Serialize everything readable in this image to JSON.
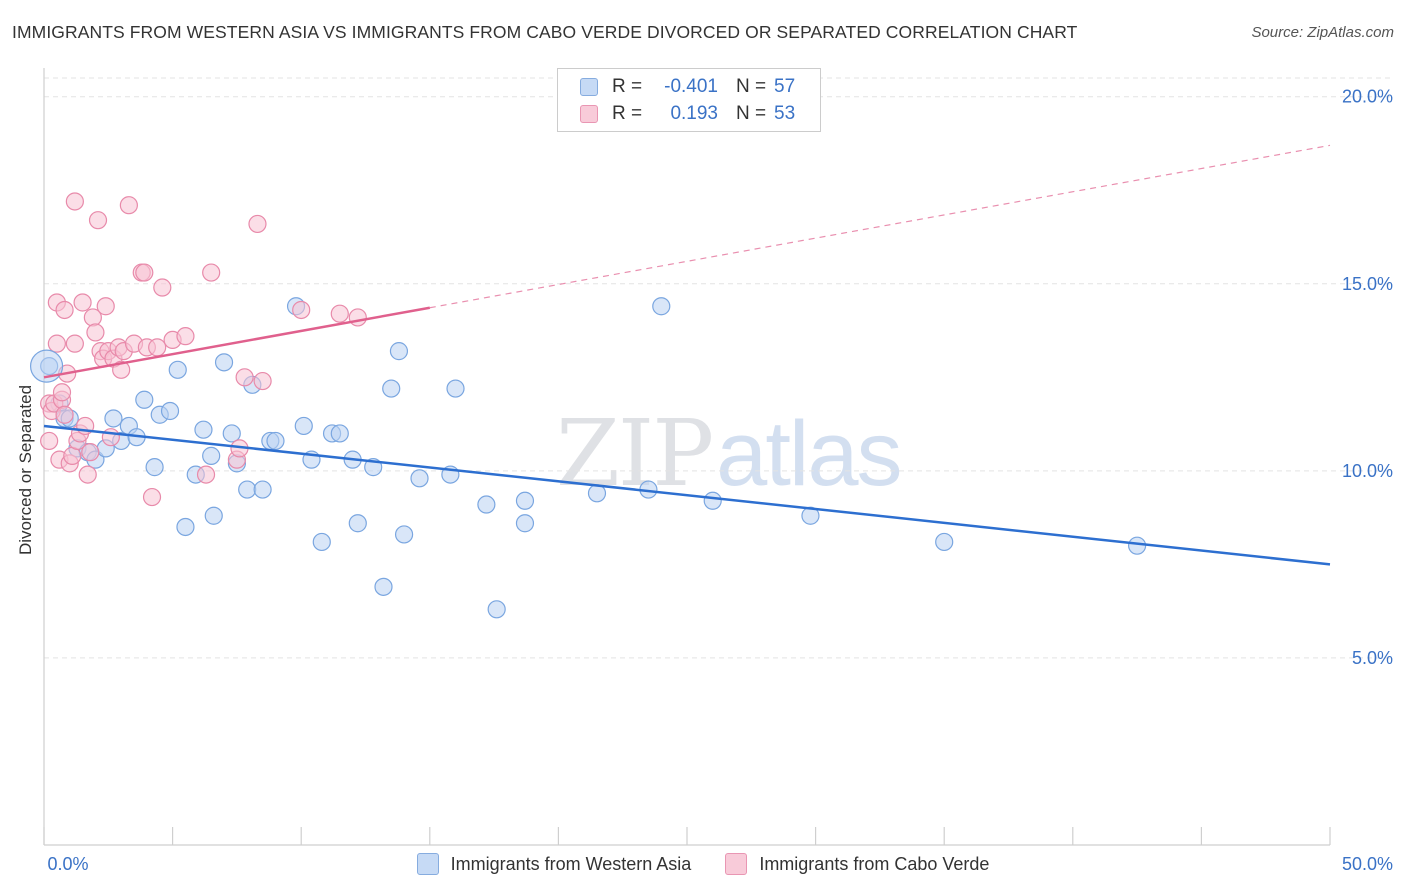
{
  "title": "IMMIGRANTS FROM WESTERN ASIA VS IMMIGRANTS FROM CABO VERDE DIVORCED OR SEPARATED CORRELATION CHART",
  "source": "Source: ZipAtlas.com",
  "watermark": {
    "zip": "ZIP",
    "atlas": "atlas"
  },
  "legend": {
    "rows": [
      {
        "r_label": "R =",
        "r_value": "-0.401",
        "n_label": "N =",
        "n_value": "57"
      },
      {
        "r_label": "R =",
        "r_value": "0.193",
        "n_label": "N =",
        "n_value": "53"
      }
    ]
  },
  "colors": {
    "blue_fill": "#b9d1f3",
    "blue_stroke": "#7aa6e0",
    "blue_line": "#2d6fd0",
    "pink_fill": "#f7c3d4",
    "pink_stroke": "#e88aaa",
    "pink_line": "#e0608d",
    "grid": "#e3e3e3",
    "tick_text": "#3a72c6"
  },
  "chart_data": {
    "type": "scatter",
    "title": "IMMIGRANTS FROM WESTERN ASIA VS IMMIGRANTS FROM CABO VERDE DIVORCED OR SEPARATED CORRELATION CHART",
    "xlabel": "",
    "ylabel": "Divorced or Separated",
    "xlim": [
      0,
      50
    ],
    "ylim": [
      0,
      20.5
    ],
    "x_tick_labels": [
      "0.0%",
      "50.0%"
    ],
    "y_ticks": [
      5,
      10,
      15,
      20
    ],
    "y_tick_labels": [
      "5.0%",
      "10.0%",
      "15.0%",
      "20.0%"
    ],
    "grid": true,
    "legend_position": "bottom",
    "series": [
      {
        "name": "Immigrants from Western Asia",
        "color": "#b9d1f3",
        "trend": {
          "x0": 0,
          "y0": 11.2,
          "x1": 50,
          "y1": 7.5,
          "dashed_from": null
        },
        "points": [
          [
            0.2,
            12.8
          ],
          [
            0.6,
            11.8
          ],
          [
            0.8,
            11.4
          ],
          [
            1.0,
            11.4
          ],
          [
            1.3,
            10.6
          ],
          [
            1.7,
            10.5
          ],
          [
            2.0,
            10.3
          ],
          [
            2.4,
            10.6
          ],
          [
            2.7,
            11.4
          ],
          [
            3.0,
            10.8
          ],
          [
            3.3,
            11.2
          ],
          [
            3.6,
            10.9
          ],
          [
            3.9,
            11.9
          ],
          [
            4.3,
            10.1
          ],
          [
            4.5,
            11.5
          ],
          [
            4.9,
            11.6
          ],
          [
            5.2,
            12.7
          ],
          [
            5.5,
            8.5
          ],
          [
            5.9,
            9.9
          ],
          [
            6.2,
            11.1
          ],
          [
            6.5,
            10.4
          ],
          [
            6.6,
            8.8
          ],
          [
            7.0,
            12.9
          ],
          [
            7.3,
            11.0
          ],
          [
            7.5,
            10.2
          ],
          [
            7.9,
            9.5
          ],
          [
            8.1,
            12.3
          ],
          [
            8.5,
            9.5
          ],
          [
            8.8,
            10.8
          ],
          [
            9.0,
            10.8
          ],
          [
            9.8,
            14.4
          ],
          [
            10.1,
            11.2
          ],
          [
            10.4,
            10.3
          ],
          [
            10.8,
            8.1
          ],
          [
            11.2,
            11.0
          ],
          [
            11.5,
            11.0
          ],
          [
            12.0,
            10.3
          ],
          [
            12.2,
            8.6
          ],
          [
            12.8,
            10.1
          ],
          [
            13.2,
            6.9
          ],
          [
            13.5,
            12.2
          ],
          [
            13.8,
            13.2
          ],
          [
            14.0,
            8.3
          ],
          [
            14.6,
            9.8
          ],
          [
            15.8,
            9.9
          ],
          [
            16.0,
            12.2
          ],
          [
            17.2,
            9.1
          ],
          [
            17.6,
            6.3
          ],
          [
            18.7,
            9.2
          ],
          [
            18.7,
            8.6
          ],
          [
            21.5,
            9.4
          ],
          [
            23.5,
            9.5
          ],
          [
            24.0,
            14.4
          ],
          [
            26.0,
            9.2
          ],
          [
            29.8,
            8.8
          ],
          [
            35.0,
            8.1
          ],
          [
            42.5,
            8.0
          ]
        ]
      },
      {
        "name": "Immigrants from Cabo Verde",
        "color": "#f7c3d4",
        "trend": {
          "x0": 0,
          "y0": 12.5,
          "x1": 50,
          "y1": 18.7,
          "dashed_from": 15
        },
        "points": [
          [
            0.2,
            10.8
          ],
          [
            0.2,
            11.8
          ],
          [
            0.3,
            11.6
          ],
          [
            0.4,
            11.8
          ],
          [
            0.5,
            14.5
          ],
          [
            0.5,
            13.4
          ],
          [
            0.6,
            10.3
          ],
          [
            0.7,
            11.9
          ],
          [
            0.7,
            12.1
          ],
          [
            0.8,
            14.3
          ],
          [
            0.8,
            11.5
          ],
          [
            0.9,
            12.6
          ],
          [
            1.0,
            10.2
          ],
          [
            1.1,
            10.4
          ],
          [
            1.2,
            13.4
          ],
          [
            1.2,
            17.2
          ],
          [
            1.3,
            10.8
          ],
          [
            1.4,
            11.0
          ],
          [
            1.5,
            14.5
          ],
          [
            1.6,
            11.2
          ],
          [
            1.7,
            9.9
          ],
          [
            1.8,
            10.5
          ],
          [
            1.9,
            14.1
          ],
          [
            2.0,
            13.7
          ],
          [
            2.1,
            16.7
          ],
          [
            2.2,
            13.2
          ],
          [
            2.3,
            13.0
          ],
          [
            2.4,
            14.4
          ],
          [
            2.5,
            13.2
          ],
          [
            2.6,
            10.9
          ],
          [
            2.7,
            13.0
          ],
          [
            2.9,
            13.3
          ],
          [
            3.0,
            12.7
          ],
          [
            3.1,
            13.2
          ],
          [
            3.3,
            17.1
          ],
          [
            3.5,
            13.4
          ],
          [
            3.8,
            15.3
          ],
          [
            3.9,
            15.3
          ],
          [
            4.0,
            13.3
          ],
          [
            4.2,
            9.3
          ],
          [
            4.4,
            13.3
          ],
          [
            4.6,
            14.9
          ],
          [
            5.0,
            13.5
          ],
          [
            5.5,
            13.6
          ],
          [
            6.3,
            9.9
          ],
          [
            6.5,
            15.3
          ],
          [
            7.5,
            10.3
          ],
          [
            7.6,
            10.6
          ],
          [
            7.8,
            12.5
          ],
          [
            8.3,
            16.6
          ],
          [
            8.5,
            12.4
          ],
          [
            10.0,
            14.3
          ],
          [
            11.5,
            14.2
          ],
          [
            12.2,
            14.1
          ]
        ]
      }
    ]
  }
}
